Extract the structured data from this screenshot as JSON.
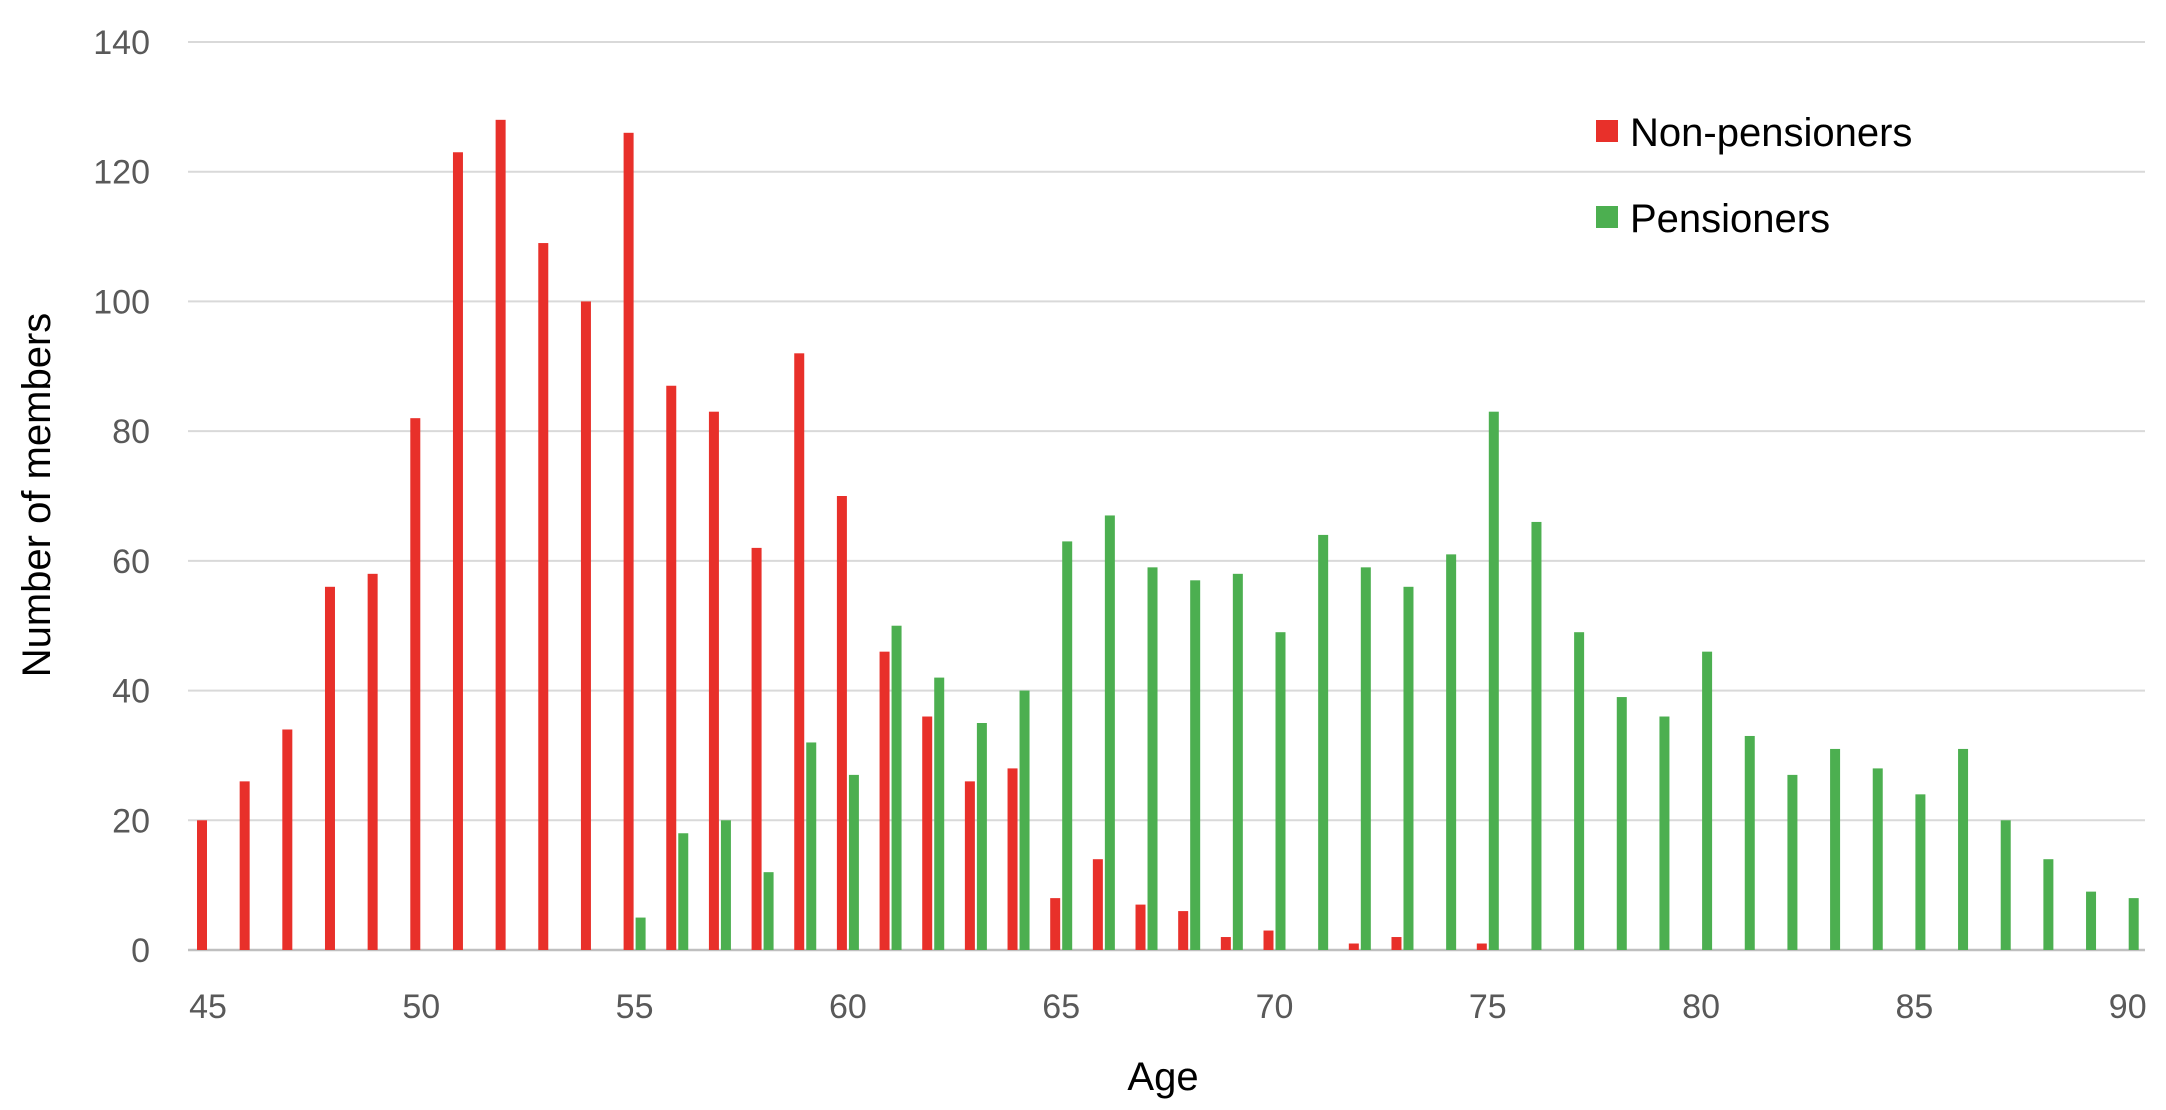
{
  "chart_data": {
    "type": "bar",
    "title": "",
    "xlabel": "Age",
    "ylabel": "Number of members",
    "ylim": [
      0,
      140
    ],
    "yticks": [
      0,
      20,
      40,
      60,
      80,
      100,
      120,
      140
    ],
    "xticks": [
      45,
      50,
      55,
      60,
      65,
      70,
      75,
      80,
      85,
      90
    ],
    "grid": "horizontal",
    "legend_position": "top-right",
    "categories": [
      45,
      46,
      47,
      48,
      49,
      50,
      51,
      52,
      53,
      54,
      55,
      56,
      57,
      58,
      59,
      60,
      61,
      62,
      63,
      64,
      65,
      66,
      67,
      68,
      69,
      70,
      71,
      72,
      73,
      74,
      75,
      76,
      77,
      78,
      79,
      80,
      81,
      82,
      83,
      84,
      85,
      86,
      87,
      88,
      89,
      90
    ],
    "series": [
      {
        "name": "Non-pensioners",
        "color": "#e8302a",
        "values": [
          20,
          26,
          34,
          56,
          58,
          82,
          123,
          128,
          109,
          100,
          126,
          87,
          83,
          62,
          92,
          70,
          46,
          36,
          26,
          28,
          8,
          14,
          7,
          6,
          2,
          3,
          0,
          1,
          2,
          0,
          1,
          0,
          0,
          0,
          0,
          0,
          0,
          0,
          0,
          0,
          0,
          0,
          0,
          0,
          0,
          0
        ]
      },
      {
        "name": "Pensioners",
        "color": "#4caf50",
        "values": [
          0,
          0,
          0,
          0,
          0,
          0,
          0,
          0,
          0,
          0,
          5,
          18,
          20,
          12,
          32,
          27,
          50,
          42,
          35,
          40,
          63,
          67,
          59,
          57,
          58,
          49,
          64,
          59,
          56,
          61,
          83,
          66,
          49,
          39,
          36,
          46,
          33,
          27,
          31,
          28,
          24,
          31,
          20,
          14,
          9,
          8
        ]
      }
    ]
  }
}
